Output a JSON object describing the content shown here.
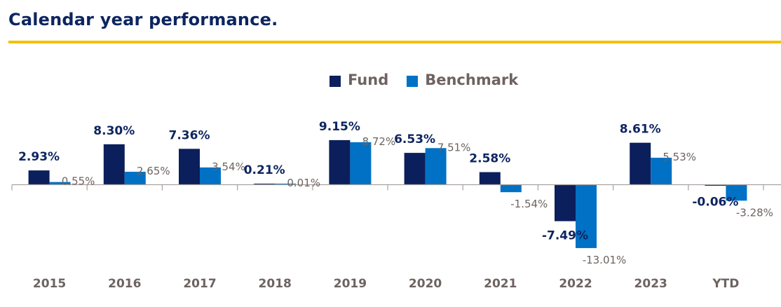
{
  "title": "Calendar year performance.",
  "colors": {
    "title": "#0d2560",
    "rule": "#f5c000",
    "fund": "#0b1f5c",
    "benchmark": "#0071c5",
    "axis": "#a8a2a0",
    "label_muted": "#6d6360"
  },
  "legend": [
    {
      "name": "Fund",
      "color_key": "fund"
    },
    {
      "name": "Benchmark",
      "color_key": "benchmark"
    }
  ],
  "chart_data": {
    "type": "bar",
    "title": "Calendar year performance.",
    "xlabel": "",
    "ylabel": "",
    "categories": [
      "2015",
      "2016",
      "2017",
      "2018",
      "2019",
      "2020",
      "2021",
      "2022",
      "2023",
      "YTD"
    ],
    "series": [
      {
        "name": "Fund",
        "values": [
          2.93,
          8.3,
          7.36,
          0.21,
          9.15,
          6.53,
          2.58,
          -7.49,
          8.61,
          -0.06
        ],
        "labels": [
          "2.93%",
          "8.30%",
          "7.36%",
          "0.21%",
          "9.15%",
          "6.53%",
          "2.58%",
          "-7.49%",
          "8.61%",
          "-0.06%"
        ]
      },
      {
        "name": "Benchmark",
        "values": [
          0.55,
          2.65,
          3.54,
          0.01,
          8.72,
          7.51,
          -1.54,
          -13.01,
          5.53,
          -3.28
        ],
        "labels": [
          "0.55%",
          "2.65%",
          "3.54%",
          "0.01%",
          "8.72%",
          "7.51%",
          "-1.54%",
          "-13.01%",
          "5.53%",
          "-3.28%"
        ]
      }
    ],
    "ylim": [
      -16,
      14
    ],
    "grid": false,
    "legend_position": "top-center",
    "data_labels": true
  }
}
